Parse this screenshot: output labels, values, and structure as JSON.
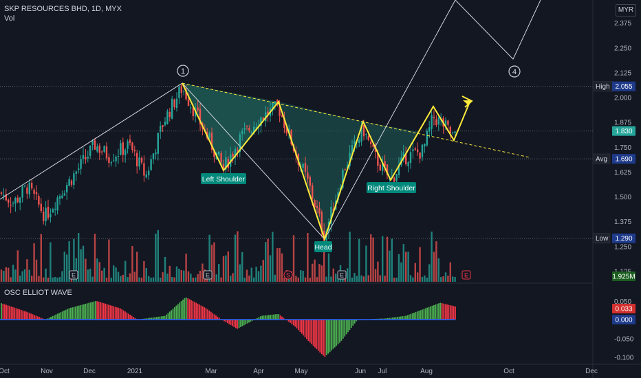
{
  "header": {
    "symbol_line": "SKP RESOURCES BHD, 1D, MYX",
    "vol_label": "Vol",
    "osc_label": "OSC ELLIOT WAVE",
    "currency": "MYR"
  },
  "colors": {
    "bg": "#131722",
    "up": "#26a69a",
    "down": "#ef5350",
    "pattern": "#ffeb3b",
    "trend": "#ffffff",
    "osc_up": "#4caf50",
    "osc_down": "#f23645",
    "fill": "#1f5e57"
  },
  "price_axis": {
    "ticks": [
      "2.375",
      "2.250",
      "2.125",
      "2.000",
      "1.875",
      "1.750",
      "1.625",
      "1.500",
      "1.375",
      "1.250",
      "1.125"
    ]
  },
  "osc_axis": {
    "ticks": [
      "0.050",
      "-0.050",
      "-0.100"
    ]
  },
  "time_axis": {
    "ticks": [
      "Oct",
      "Nov",
      "Dec",
      "2021",
      "Mar",
      "Apr",
      "May",
      "Jun",
      "Jul",
      "Aug",
      "Oct",
      "Dec"
    ]
  },
  "price_labels": {
    "high": {
      "label": "High",
      "value": "2.055"
    },
    "last": {
      "value": "1.830"
    },
    "avg": {
      "label": "Avg",
      "value": "1.690"
    },
    "low": {
      "label": "Low",
      "value": "1.290"
    },
    "volume": {
      "value": "1.925M"
    },
    "osc_a": {
      "value": "0.033"
    },
    "osc_b": {
      "value": "0.000"
    }
  },
  "annotations": {
    "left_shoulder": "Left Shoulder",
    "head": "Head",
    "right_shoulder": "Right Shoulder",
    "wave_1": "1",
    "wave_4": "4",
    "event_e": "E",
    "event_s": "S"
  },
  "chart_data": {
    "type": "candlestick",
    "ylim": [
      1.08,
      2.45
    ],
    "levels": {
      "high": 2.055,
      "last": 1.83,
      "avg": 1.69,
      "low": 1.29
    },
    "head_and_shoulders": {
      "points": [
        [
          "Feb 2021",
          2.055
        ],
        [
          "Mar 2021",
          1.62
        ],
        [
          "Apr 2021",
          1.96
        ],
        [
          "May 2021",
          1.29
        ],
        [
          "Jun 2021",
          1.86
        ],
        [
          "Jul 2021",
          1.57
        ],
        [
          "Aug 2021",
          1.93
        ],
        [
          "Aug 2021",
          1.77
        ],
        [
          "Aug 2021",
          1.95
        ]
      ]
    },
    "neckline": {
      "from": [
        "Feb 2021",
        2.055
      ],
      "to": [
        "Sep 2021",
        1.69
      ]
    },
    "elliott_path": [
      [
        "Oct 2020",
        1.53
      ],
      [
        "Feb 2021",
        2.055
      ],
      [
        "May 2021",
        1.29
      ],
      [
        "Sep 2021",
        2.5
      ],
      [
        "Oct 2021",
        2.18
      ],
      [
        "Nov 2021",
        2.5
      ]
    ]
  }
}
